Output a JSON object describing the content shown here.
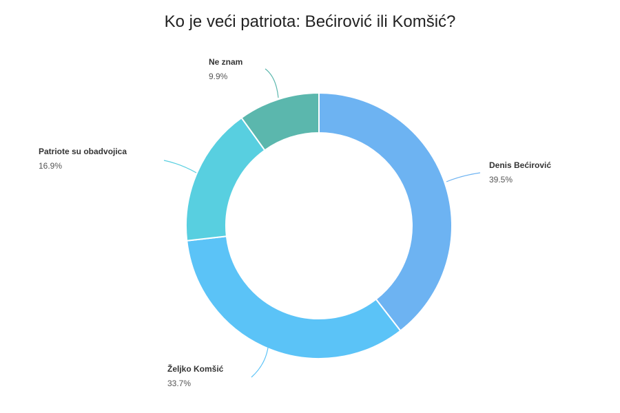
{
  "chart_data": {
    "type": "pie",
    "variant": "donut",
    "title": "Ko je veći patriota: Bećirović ili Komšić?",
    "categories": [
      "Denis Bećirović",
      "Željko Komšić",
      "Patriote su obadvojica",
      "Ne znam"
    ],
    "values": [
      39.5,
      33.7,
      16.9,
      9.9
    ],
    "value_labels": [
      "39.5%",
      "33.7%",
      "16.9%",
      "9.9%"
    ],
    "colors": [
      "#6db3f2",
      "#5bc3f7",
      "#58cfe0",
      "#5bb7ad"
    ],
    "start_angle_deg": 0,
    "direction": "clockwise",
    "legend": "none (outside labels with leader lines)",
    "center": [
      463,
      328
    ],
    "outer_radius": 193,
    "inner_radius": 135
  },
  "labels": [
    {
      "name": "Denis Bećirović",
      "pct": "39.5%"
    },
    {
      "name": "Željko Komšić",
      "pct": "33.7%"
    },
    {
      "name": "Patriote su obadvojica",
      "pct": "16.9%"
    },
    {
      "name": "Ne znam",
      "pct": "9.9%"
    }
  ]
}
